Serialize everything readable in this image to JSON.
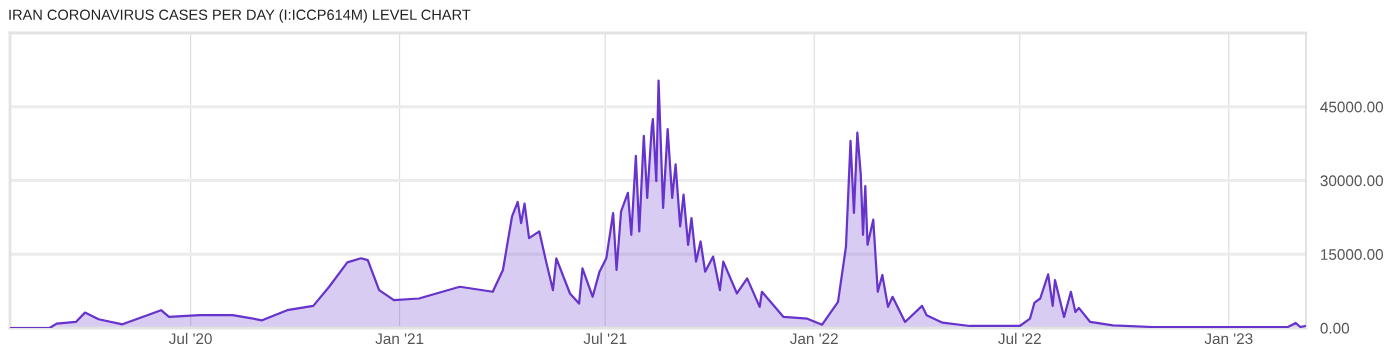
{
  "chart_data": {
    "type": "area",
    "title": "IRAN CORONAVIRUS CASES PER DAY (I:ICCP614M) LEVEL CHART",
    "series": [
      {
        "color": "#6633cc",
        "x": [
          "2020-01-24",
          "2020-02-28",
          "2020-03-05",
          "2020-03-22",
          "2020-03-30",
          "2020-04-11",
          "2020-05-02",
          "2020-06-05",
          "2020-06-12",
          "2020-07-09",
          "2020-08-07",
          "2020-09-02",
          "2020-09-24",
          "2020-10-17",
          "2020-10-31",
          "2020-11-16",
          "2020-11-28",
          "2020-12-04",
          "2020-12-14",
          "2020-12-27",
          "2021-01-18",
          "2021-02-23",
          "2021-03-24",
          "2021-04-02",
          "2021-04-10",
          "2021-04-15",
          "2021-04-18",
          "2021-04-21",
          "2021-04-25",
          "2021-05-04",
          "2021-05-10",
          "2021-05-16",
          "2021-05-19",
          "2021-05-31",
          "2021-06-08",
          "2021-06-11",
          "2021-06-20",
          "2021-06-26",
          "2021-07-02",
          "2021-07-08",
          "2021-07-11",
          "2021-07-15",
          "2021-07-21",
          "2021-07-24",
          "2021-07-28",
          "2021-07-31",
          "2021-08-04",
          "2021-08-07",
          "2021-08-11",
          "2021-08-12",
          "2021-08-15",
          "2021-08-17",
          "2021-08-21",
          "2021-08-25",
          "2021-08-29",
          "2021-09-01",
          "2021-09-05",
          "2021-09-08",
          "2021-09-12",
          "2021-09-15",
          "2021-09-19",
          "2021-09-23",
          "2021-09-27",
          "2021-10-04",
          "2021-10-10",
          "2021-10-13",
          "2021-10-25",
          "2021-11-03",
          "2021-11-14",
          "2021-11-16",
          "2021-12-05",
          "2021-12-26",
          "2022-01-08",
          "2022-01-22",
          "2022-01-29",
          "2022-02-02",
          "2022-02-05",
          "2022-02-08",
          "2022-02-11",
          "2022-02-13",
          "2022-02-15",
          "2022-02-17",
          "2022-02-22",
          "2022-02-26",
          "2022-03-02",
          "2022-03-07",
          "2022-03-11",
          "2022-03-22",
          "2022-04-06",
          "2022-04-10",
          "2022-04-24",
          "2022-05-18",
          "2022-07-01",
          "2022-07-10",
          "2022-07-14",
          "2022-07-19",
          "2022-07-26",
          "2022-07-30",
          "2022-08-01",
          "2022-08-09",
          "2022-08-15",
          "2022-08-19",
          "2022-08-22",
          "2022-09-01",
          "2022-09-21",
          "2022-10-26",
          "2023-02-22",
          "2023-03-01",
          "2023-03-05",
          "2023-03-09"
        ],
        "values": [
          0,
          0,
          880,
          1230,
          3130,
          1780,
          750,
          3620,
          2250,
          2600,
          2600,
          1570,
          3620,
          4500,
          8390,
          13360,
          14180,
          13800,
          7710,
          5670,
          6000,
          8390,
          7370,
          11800,
          22710,
          25640,
          21340,
          25300,
          18270,
          19640,
          13500,
          7710,
          14180,
          7020,
          4970,
          12130,
          6340,
          11460,
          14180,
          23390,
          11800,
          23740,
          27480,
          18960,
          34990,
          19640,
          39080,
          26460,
          40790,
          42500,
          29880,
          50340,
          24420,
          40450,
          26460,
          33290,
          20670,
          27140,
          16920,
          22370,
          13500,
          17600,
          11460,
          14530,
          7710,
          13500,
          7020,
          10090,
          4300,
          7370,
          2250,
          1900,
          680,
          5320,
          16580,
          38060,
          23390,
          39760,
          31250,
          18960,
          28860,
          16920,
          22030,
          7370,
          10780,
          4300,
          6340,
          1230,
          4500,
          2600,
          1090,
          410,
          410,
          1900,
          5180,
          6000,
          10910,
          4500,
          9750,
          2250,
          7370,
          3270,
          4090,
          1230,
          550,
          200,
          200,
          1020,
          200,
          400
        ]
      }
    ],
    "xlim": [
      "2020-01-24",
      "2023-03-10"
    ],
    "xticks": [
      {
        "value": "2020-07-01",
        "label": "Jul '20"
      },
      {
        "value": "2021-01-01",
        "label": "Jan '21"
      },
      {
        "value": "2021-07-01",
        "label": "Jul '21"
      },
      {
        "value": "2022-01-01",
        "label": "Jan '22"
      },
      {
        "value": "2022-07-01",
        "label": "Jul '22"
      },
      {
        "value": "2023-01-01",
        "label": "Jan '23"
      }
    ],
    "ylim": [
      0,
      60000
    ],
    "yticks": [
      {
        "value": 0,
        "label": "0.00"
      },
      {
        "value": 15000,
        "label": "15000.00"
      },
      {
        "value": 30000,
        "label": "30000.00"
      },
      {
        "value": 45000,
        "label": "45000.00"
      }
    ],
    "grid": true,
    "legend": false
  }
}
